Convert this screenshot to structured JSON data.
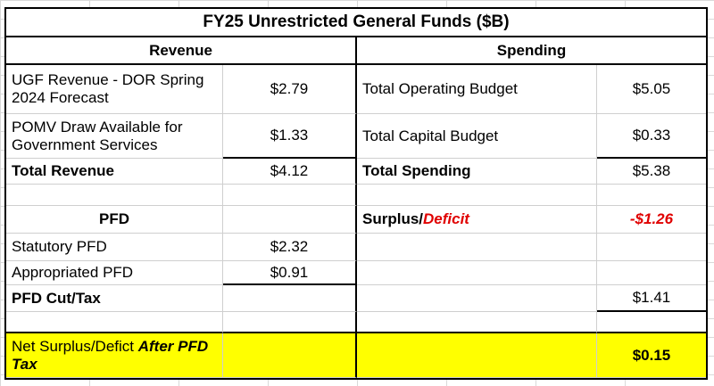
{
  "title": "FY25 Unrestricted General Funds ($B)",
  "headers": {
    "revenue": "Revenue",
    "spending": "Spending"
  },
  "rows": {
    "ugf_label": "UGF Revenue - DOR Spring 2024 Forecast",
    "ugf_value": "$2.79",
    "op_label": "Total Operating Budget",
    "op_value": "$5.05",
    "pomv_label": "POMV Draw Available for Government Services",
    "pomv_value": "$1.33",
    "cap_label": "Total Capital Budget",
    "cap_value": "$0.33",
    "total_rev_label": "Total Revenue",
    "total_rev_value": "$4.12",
    "total_spend_label": "Total Spending",
    "total_spend_value": "$5.38",
    "pfd_label": "PFD",
    "surplus_label": "Surplus/",
    "deficit_label": "Deficit",
    "surplus_value": "-$1.26",
    "stat_pfd_label": "Statutory PFD",
    "stat_pfd_value": "$2.32",
    "appr_pfd_label": "Appropriated PFD",
    "appr_pfd_value": "$0.91",
    "pfd_cut_label": "PFD Cut/Tax",
    "pfd_cut_value": "$1.41",
    "net_label_plain": "Net Surplus/Defict ",
    "net_label_emph": "After PFD Tax",
    "net_value": "$0.15"
  },
  "colors": {
    "highlight": "#ffff00",
    "deficit": "#e00000"
  }
}
